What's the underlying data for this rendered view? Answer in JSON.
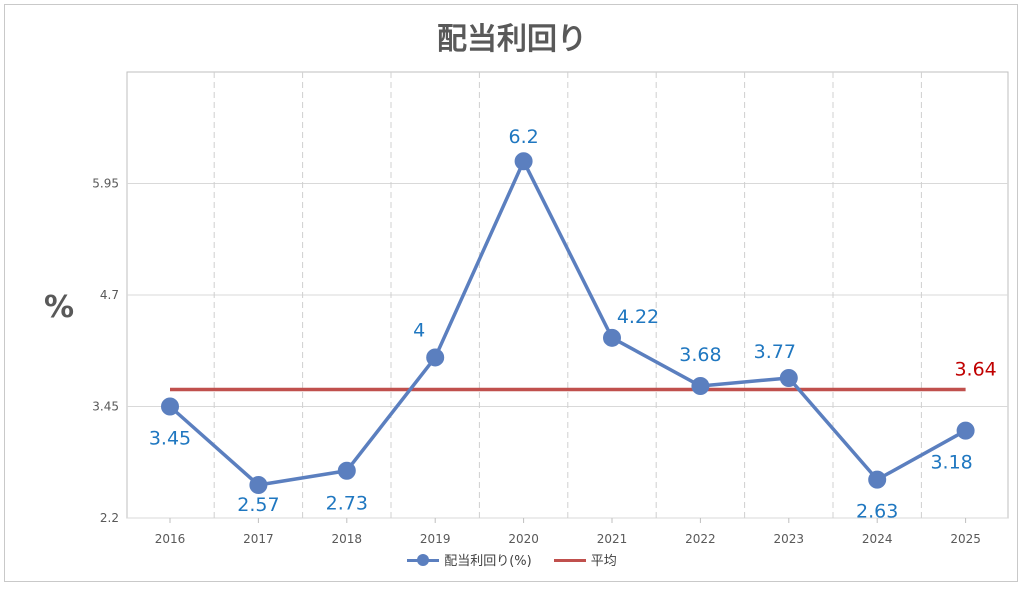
{
  "chart_data": {
    "type": "line",
    "title": "配当利回り",
    "ylabel": "%",
    "categories": [
      "2016",
      "2017",
      "2018",
      "2019",
      "2020",
      "2021",
      "2022",
      "2023",
      "2024",
      "2025"
    ],
    "yticks": [
      "2.2",
      "3.45",
      "4.7",
      "5.95"
    ],
    "ylim": [
      2.2,
      7.2
    ],
    "series": [
      {
        "name": "配当利回り(%)",
        "values": [
          3.45,
          2.57,
          2.73,
          4,
          6.2,
          4.22,
          3.68,
          3.77,
          2.63,
          3.18
        ],
        "labels": [
          "3.45",
          "2.57",
          "2.73",
          "4",
          "6.2",
          "4.22",
          "3.68",
          "3.77",
          "2.63",
          "3.18"
        ],
        "color": "#5b7fbf",
        "label_color": "#1f77c0"
      },
      {
        "name": "平均",
        "values": [
          3.64,
          3.64,
          3.64,
          3.64,
          3.64,
          3.64,
          3.64,
          3.64,
          3.64,
          3.64
        ],
        "label": "3.64",
        "color": "#c0504d",
        "label_color": "#c00000"
      }
    ],
    "grid": {
      "horizontal": true,
      "vertical_dashed": true
    },
    "legend_position": "bottom"
  }
}
